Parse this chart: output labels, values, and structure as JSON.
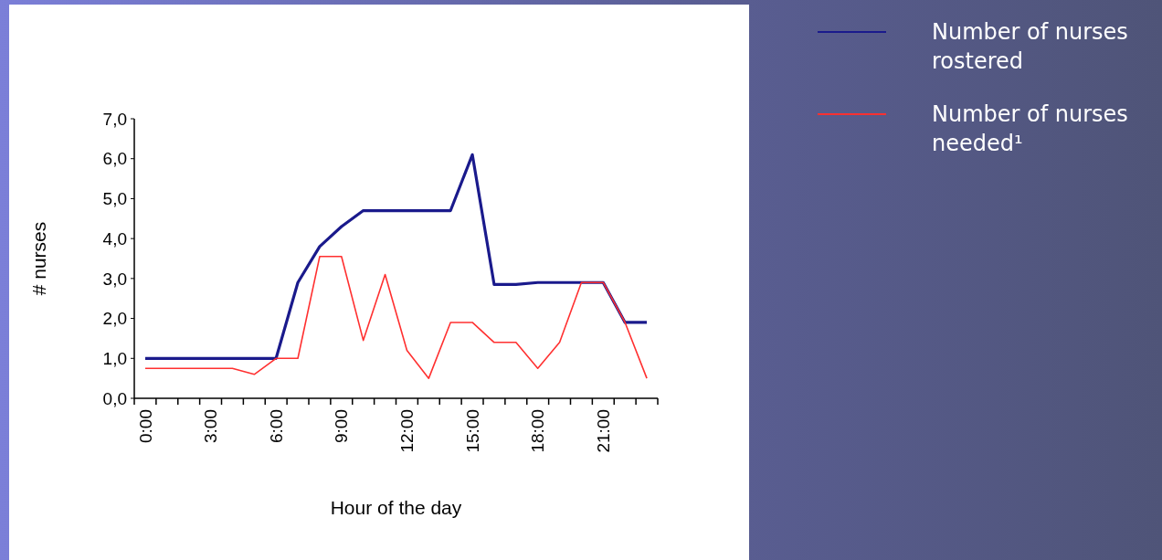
{
  "chart_data": {
    "type": "line",
    "xlabel": "Hour of the day",
    "ylabel": "# nurses",
    "categories": [
      "0:00",
      null,
      null,
      "3:00",
      null,
      null,
      "6:00",
      null,
      null,
      "9:00",
      null,
      null,
      "12:00",
      null,
      null,
      "15:00",
      null,
      null,
      "18:00",
      null,
      null,
      "21:00",
      null,
      null
    ],
    "series": [
      {
        "name": "Number of nurses rostered",
        "color": "#1a1a8c",
        "values": [
          1.0,
          1.0,
          1.0,
          1.0,
          1.0,
          1.0,
          1.0,
          2.9,
          3.8,
          4.3,
          4.7,
          4.7,
          4.7,
          4.7,
          4.7,
          6.1,
          2.85,
          2.85,
          2.9,
          2.9,
          2.9,
          2.9,
          1.9,
          1.9
        ]
      },
      {
        "name": "Number of nurses needed¹",
        "color": "#ff3030",
        "values": [
          0.75,
          0.75,
          0.75,
          0.75,
          0.75,
          0.6,
          1.0,
          1.0,
          3.55,
          3.55,
          1.45,
          3.1,
          1.2,
          0.5,
          1.9,
          1.9,
          1.4,
          1.4,
          0.75,
          1.4,
          2.9,
          2.9,
          1.9,
          0.5
        ]
      }
    ],
    "ylim": [
      0,
      7
    ],
    "yticks": [
      {
        "value": 0,
        "label": "0,0"
      },
      {
        "value": 1,
        "label": "1,0"
      },
      {
        "value": 2,
        "label": "2,0"
      },
      {
        "value": 3,
        "label": "3,0"
      },
      {
        "value": 4,
        "label": "4,0"
      },
      {
        "value": 5,
        "label": "5,0"
      },
      {
        "value": 6,
        "label": "6,0"
      },
      {
        "value": 7,
        "label": "7,0"
      }
    ],
    "grid": false,
    "legend": "right",
    "marker": "none",
    "line_style": "solid"
  }
}
